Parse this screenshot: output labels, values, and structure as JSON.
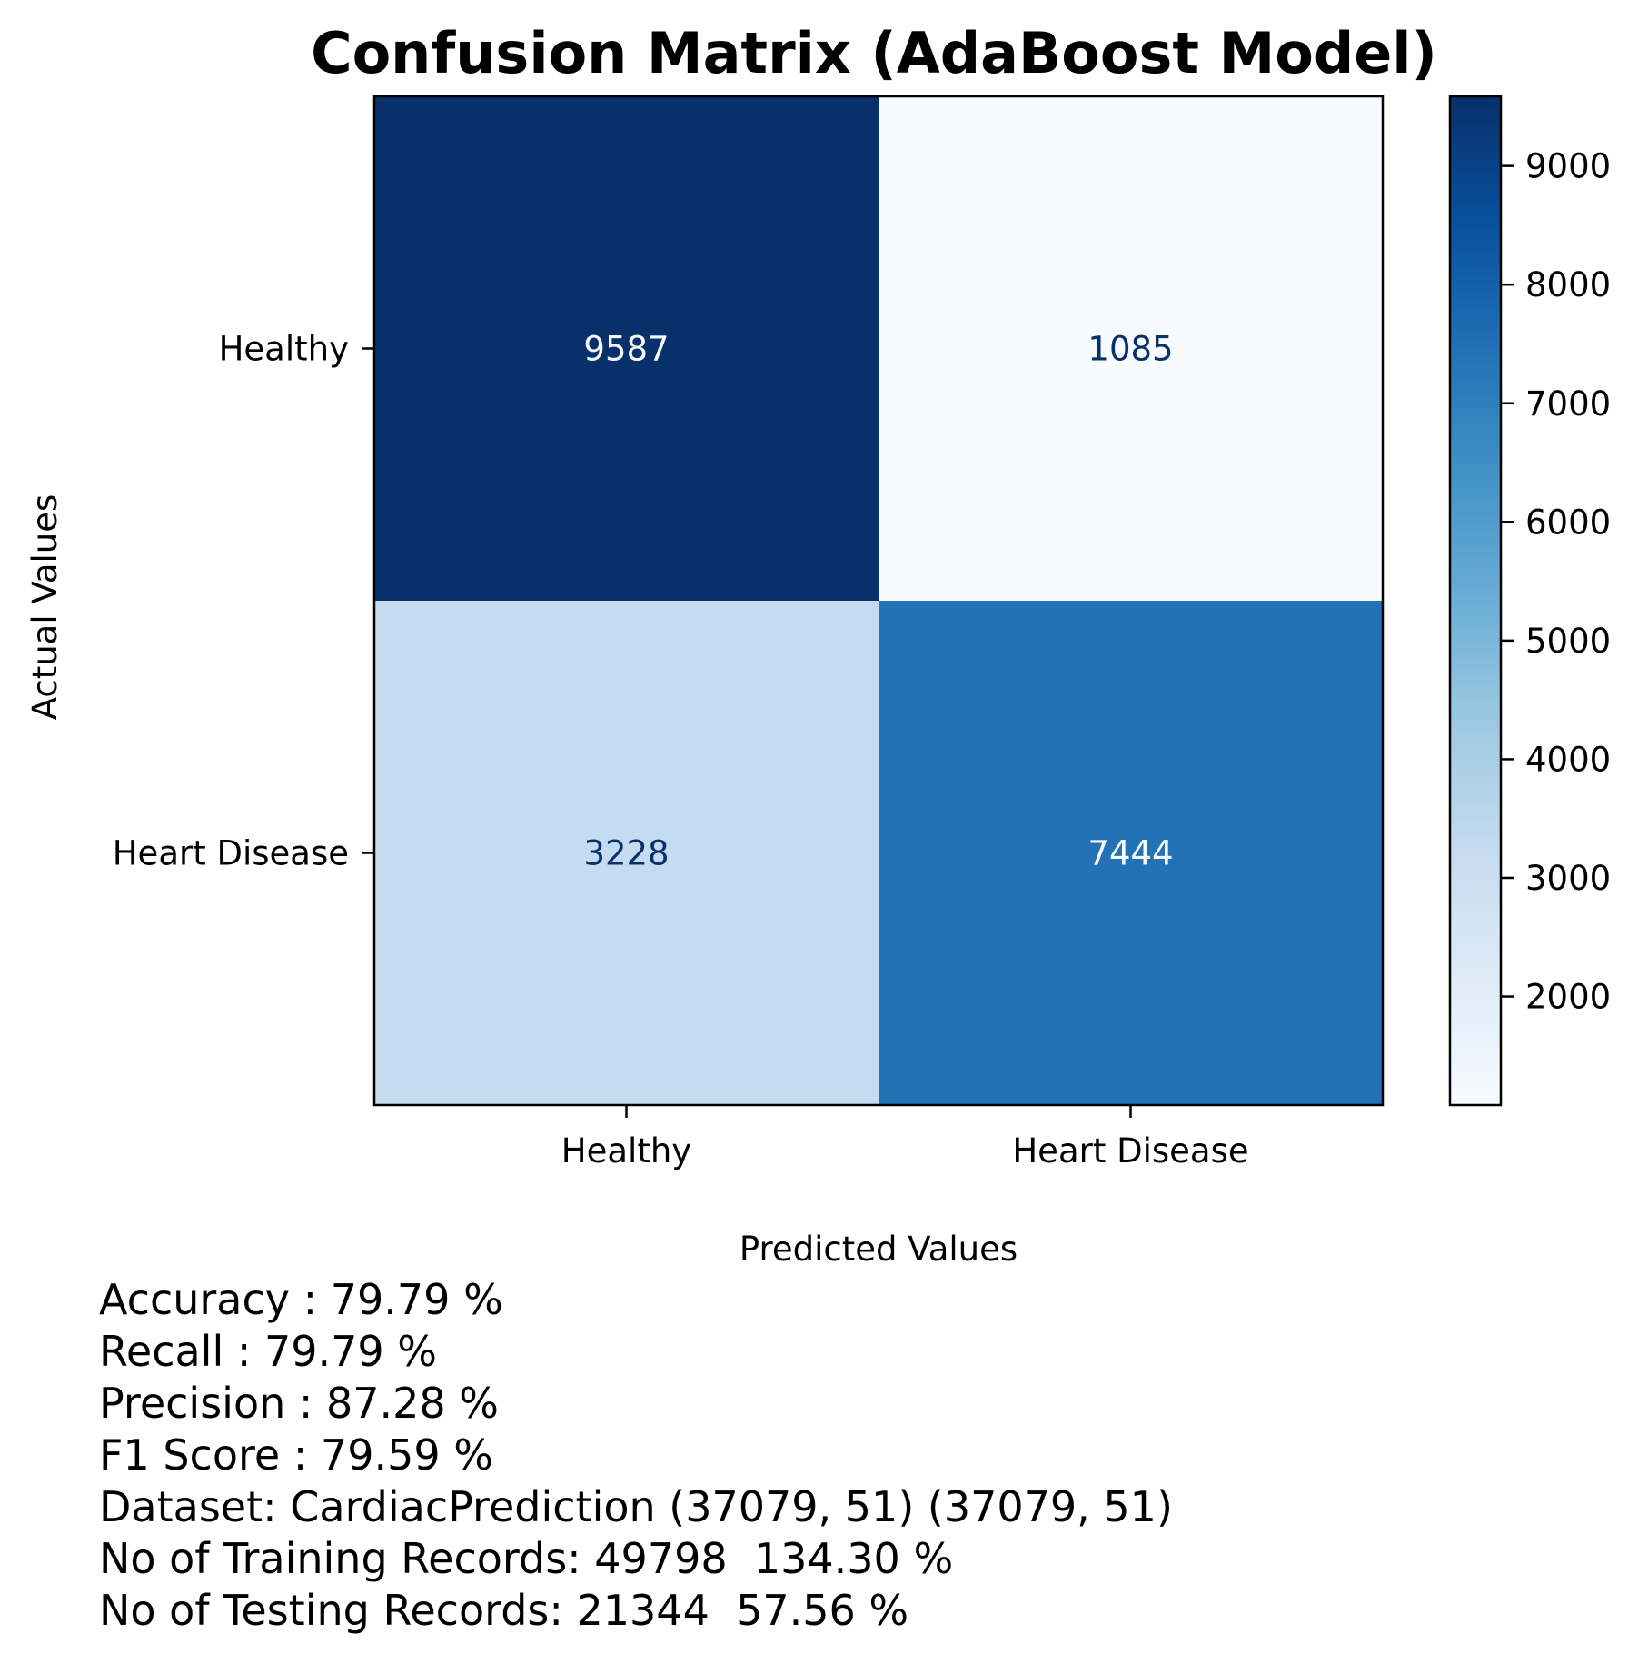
{
  "chart_data": {
    "type": "heatmap",
    "title": "Confusion Matrix (AdaBoost Model)",
    "xlabel": "Predicted Values",
    "ylabel": "Actual Values",
    "x_categories": [
      "Healthy",
      "Heart Disease"
    ],
    "y_categories": [
      "Healthy",
      "Heart Disease"
    ],
    "matrix": [
      [
        9587,
        1085
      ],
      [
        3228,
        7444
      ]
    ],
    "colormap": "Blues",
    "colorbar": {
      "min": 1085,
      "max": 9587,
      "ticks": [
        2000,
        3000,
        4000,
        5000,
        6000,
        7000,
        8000,
        9000
      ]
    }
  },
  "metrics": [
    "Accuracy : 79.79 %",
    "Recall : 79.79 %",
    "Precision : 87.28 %",
    "F1 Score : 79.59 %",
    "Dataset: CardiacPrediction (37079, 51) (37079, 51)",
    "No of Training Records: 49798  134.30 %",
    "No of Testing Records: 21344  57.56 %"
  ]
}
